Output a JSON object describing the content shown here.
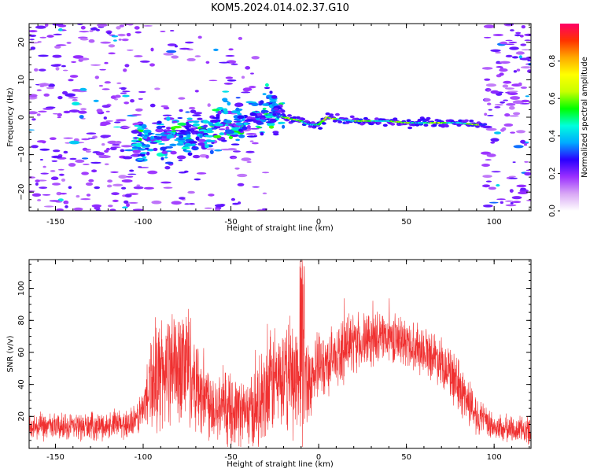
{
  "title": "KOM5.2024.014.02.37.G10",
  "chart_data": [
    {
      "type": "heatmap",
      "xlabel": "Height of straight line (km)",
      "ylabel": "Frequency (Hz)",
      "xlim": [
        -165,
        121
      ],
      "ylim": [
        -25,
        25
      ],
      "xticks": [
        -150,
        -100,
        -50,
        0,
        50,
        100
      ],
      "yticks": [
        -20,
        -10,
        0,
        10,
        20
      ],
      "ytick_labels": [
        "−20",
        "−10",
        "0",
        "10",
        "20"
      ],
      "colorbar": {
        "label": "Normalized spectral amplitude",
        "range": [
          0,
          1
        ],
        "ticks": [
          0.0,
          0.2,
          0.4,
          0.6,
          0.8
        ],
        "tick_labels": [
          "0.0",
          "0.2",
          "0.4",
          "0.6",
          "0.8"
        ],
        "colors": [
          "#ffffff",
          "#d9a8f5",
          "#9b30ff",
          "#2a00ff",
          "#00aaff",
          "#00ffdd",
          "#00ff00",
          "#c8ff00",
          "#ffff00",
          "#ffaa00",
          "#ff3300",
          "#ff0066"
        ]
      },
      "ridge": {
        "x": [
          -100,
          -90,
          -80,
          -70,
          -60,
          -50,
          -40,
          -30,
          -25,
          -20,
          -10,
          -5,
          0,
          5,
          10,
          20,
          30,
          40,
          50,
          60,
          70,
          80,
          90,
          95
        ],
        "y": [
          -7,
          -6,
          -5,
          -4,
          -3,
          -2,
          -1,
          1,
          1.5,
          0,
          -1,
          -2,
          -2,
          0,
          -0.5,
          -1,
          -1,
          -1,
          -1.5,
          -1.5,
          -1.5,
          -1.5,
          -2,
          -2
        ]
      },
      "grid": false
    },
    {
      "type": "line",
      "xlabel": "Height of straight line (km)",
      "ylabel": "SNR (v/v)",
      "xlim": [
        -165,
        121
      ],
      "ylim": [
        0,
        118
      ],
      "xticks": [
        -150,
        -100,
        -50,
        0,
        50,
        100
      ],
      "yticks": [
        20,
        40,
        60,
        80,
        100
      ],
      "ytick_labels": [
        "20",
        "40",
        "60",
        "80",
        "100"
      ],
      "series": [
        {
          "color": "#f03030",
          "envelope_x": [
            -165,
            -120,
            -105,
            -100,
            -95,
            -80,
            -75,
            -70,
            -60,
            -50,
            -40,
            -30,
            -25,
            -20,
            -15,
            -10,
            -5,
            0,
            10,
            20,
            30,
            40,
            50,
            60,
            70,
            80,
            85,
            90,
            95,
            100,
            110,
            121
          ],
          "envelope_mean": [
            13,
            14,
            16,
            25,
            45,
            52,
            55,
            40,
            28,
            25,
            22,
            30,
            45,
            40,
            48,
            40,
            45,
            50,
            58,
            65,
            68,
            70,
            66,
            62,
            55,
            38,
            30,
            22,
            16,
            13,
            12,
            11
          ],
          "envelope_spread": [
            10,
            10,
            12,
            15,
            40,
            45,
            50,
            35,
            28,
            25,
            25,
            40,
            40,
            35,
            45,
            50,
            30,
            25,
            22,
            22,
            20,
            18,
            18,
            18,
            18,
            20,
            18,
            15,
            12,
            10,
            10,
            10
          ]
        }
      ],
      "grid": false
    }
  ]
}
